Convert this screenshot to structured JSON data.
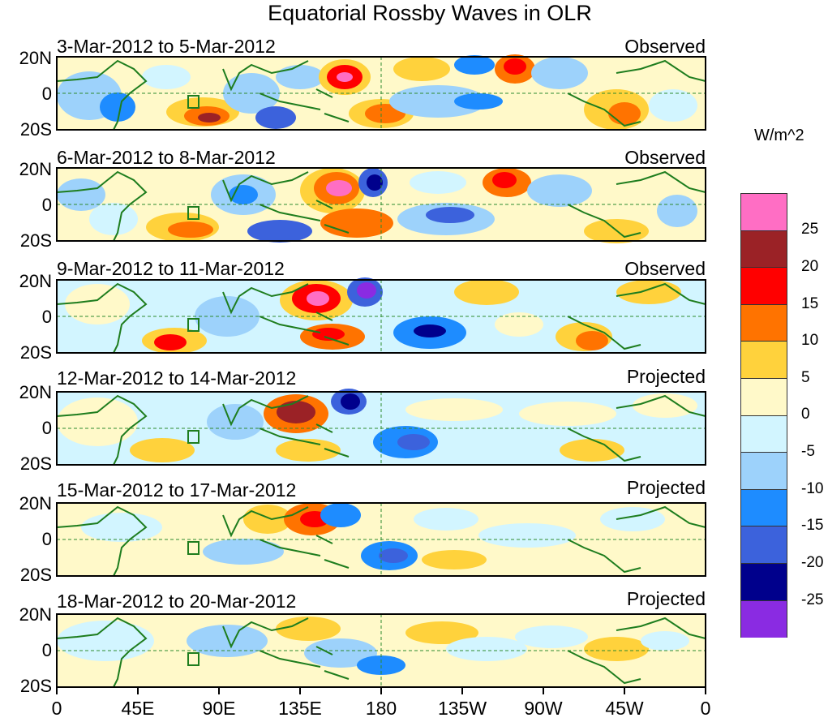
{
  "title": "Equatorial Rossby Waves in OLR",
  "units": "W/m^2",
  "y_ticks": [
    "20N",
    "0",
    "20S"
  ],
  "x_ticks": [
    "0",
    "45E",
    "90E",
    "135E",
    "180",
    "135W",
    "90W",
    "45W",
    "0"
  ],
  "panels": [
    {
      "dates": "3-Mar-2012 to 5-Mar-2012",
      "type": "Observed"
    },
    {
      "dates": "6-Mar-2012 to 8-Mar-2012",
      "type": "Observed"
    },
    {
      "dates": "9-Mar-2012 to 11-Mar-2012",
      "type": "Observed"
    },
    {
      "dates": "12-Mar-2012 to 14-Mar-2012",
      "type": "Projected"
    },
    {
      "dates": "15-Mar-2012 to 17-Mar-2012",
      "type": "Projected"
    },
    {
      "dates": "18-Mar-2012 to 20-Mar-2012",
      "type": "Projected"
    }
  ],
  "colorbar": {
    "labels": [
      "25",
      "20",
      "15",
      "10",
      "5",
      "0",
      "-5",
      "-10",
      "-15",
      "-20",
      "-25"
    ],
    "colors": [
      "#ff6ec4",
      "#9b2226",
      "#ff0000",
      "#ff7300",
      "#ffd23c",
      "#fff9c9",
      "#d2f5ff",
      "#9dd2fb",
      "#1e8cff",
      "#3c62dc",
      "#00008c",
      "#8a2be2"
    ]
  }
}
